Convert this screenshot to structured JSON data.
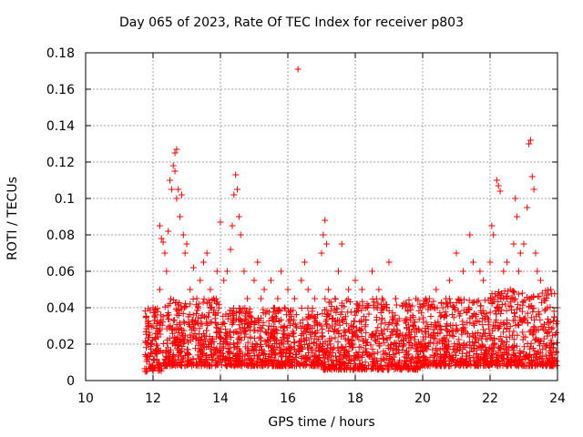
{
  "chart_data": {
    "type": "scatter",
    "title": "Day 065 of 2023, Rate Of TEC Index for receiver p803",
    "xlabel": "GPS time / hours",
    "ylabel": "ROTI / TECUs",
    "xlim": [
      10,
      24
    ],
    "ylim": [
      0,
      0.18
    ],
    "xticks": [
      10,
      12,
      14,
      16,
      18,
      20,
      22,
      24
    ],
    "yticks": [
      0,
      0.02,
      0.04,
      0.06,
      0.08,
      0.1,
      0.12,
      0.14,
      0.16,
      0.18
    ],
    "grid": true,
    "marker": "+",
    "color": "#ff0000",
    "series": [
      {
        "name": "ROTI",
        "points": [
          [
            11.8,
            0.005
          ],
          [
            11.8,
            0.035
          ],
          [
            11.9,
            0.025
          ],
          [
            12.0,
            0.03
          ],
          [
            12.0,
            0.04
          ],
          [
            12.1,
            0.02
          ],
          [
            12.2,
            0.05
          ],
          [
            12.2,
            0.085
          ],
          [
            12.25,
            0.078
          ],
          [
            12.3,
            0.076
          ],
          [
            12.35,
            0.07
          ],
          [
            12.4,
            0.06
          ],
          [
            12.45,
            0.082
          ],
          [
            12.5,
            0.11
          ],
          [
            12.55,
            0.105
          ],
          [
            12.6,
            0.118
          ],
          [
            12.65,
            0.125
          ],
          [
            12.7,
            0.127
          ],
          [
            12.65,
            0.115
          ],
          [
            12.7,
            0.1
          ],
          [
            12.75,
            0.105
          ],
          [
            12.8,
            0.09
          ],
          [
            12.85,
            0.102
          ],
          [
            12.9,
            0.08
          ],
          [
            12.95,
            0.07
          ],
          [
            13.0,
            0.075
          ],
          [
            13.1,
            0.05
          ],
          [
            13.2,
            0.062
          ],
          [
            13.3,
            0.045
          ],
          [
            13.4,
            0.055
          ],
          [
            13.5,
            0.065
          ],
          [
            13.6,
            0.07
          ],
          [
            13.7,
            0.05
          ],
          [
            13.8,
            0.045
          ],
          [
            13.9,
            0.06
          ],
          [
            14.0,
            0.087
          ],
          [
            14.1,
            0.055
          ],
          [
            14.2,
            0.06
          ],
          [
            14.3,
            0.072
          ],
          [
            14.35,
            0.085
          ],
          [
            14.4,
            0.102
          ],
          [
            14.45,
            0.113
          ],
          [
            14.5,
            0.105
          ],
          [
            14.55,
            0.09
          ],
          [
            14.6,
            0.08
          ],
          [
            14.7,
            0.06
          ],
          [
            14.8,
            0.045
          ],
          [
            15.0,
            0.055
          ],
          [
            15.1,
            0.065
          ],
          [
            15.2,
            0.045
          ],
          [
            15.3,
            0.05
          ],
          [
            15.5,
            0.055
          ],
          [
            15.7,
            0.045
          ],
          [
            15.8,
            0.06
          ],
          [
            15.9,
            0.04
          ],
          [
            16.0,
            0.05
          ],
          [
            16.2,
            0.045
          ],
          [
            16.3,
            0.171
          ],
          [
            16.4,
            0.055
          ],
          [
            16.5,
            0.065
          ],
          [
            16.6,
            0.05
          ],
          [
            16.8,
            0.045
          ],
          [
            17.0,
            0.07
          ],
          [
            17.05,
            0.08
          ],
          [
            17.1,
            0.088
          ],
          [
            17.15,
            0.075
          ],
          [
            17.2,
            0.05
          ],
          [
            17.4,
            0.045
          ],
          [
            17.5,
            0.06
          ],
          [
            17.6,
            0.075
          ],
          [
            17.8,
            0.05
          ],
          [
            18.0,
            0.055
          ],
          [
            18.2,
            0.05
          ],
          [
            18.5,
            0.06
          ],
          [
            18.7,
            0.05
          ],
          [
            18.8,
            0.045
          ],
          [
            19.0,
            0.065
          ],
          [
            19.2,
            0.045
          ],
          [
            19.5,
            0.04
          ],
          [
            19.8,
            0.045
          ],
          [
            20.0,
            0.04
          ],
          [
            20.2,
            0.045
          ],
          [
            20.4,
            0.05
          ],
          [
            20.6,
            0.04
          ],
          [
            20.8,
            0.055
          ],
          [
            21.0,
            0.07
          ],
          [
            21.2,
            0.06
          ],
          [
            21.4,
            0.08
          ],
          [
            21.5,
            0.065
          ],
          [
            21.7,
            0.06
          ],
          [
            21.8,
            0.055
          ],
          [
            22.0,
            0.065
          ],
          [
            22.05,
            0.085
          ],
          [
            22.1,
            0.08
          ],
          [
            22.2,
            0.11
          ],
          [
            22.25,
            0.107
          ],
          [
            22.3,
            0.104
          ],
          [
            22.4,
            0.06
          ],
          [
            22.5,
            0.065
          ],
          [
            22.6,
            0.05
          ],
          [
            22.7,
            0.075
          ],
          [
            22.75,
            0.1
          ],
          [
            22.8,
            0.09
          ],
          [
            22.85,
            0.06
          ],
          [
            22.9,
            0.07
          ],
          [
            23.0,
            0.075
          ],
          [
            23.1,
            0.095
          ],
          [
            23.15,
            0.13
          ],
          [
            23.2,
            0.132
          ],
          [
            23.25,
            0.112
          ],
          [
            23.3,
            0.105
          ],
          [
            23.35,
            0.07
          ],
          [
            23.4,
            0.06
          ],
          [
            23.5,
            0.055
          ],
          [
            23.6,
            0.045
          ],
          [
            23.7,
            0.04
          ],
          [
            23.8,
            0.05
          ],
          [
            23.9,
            0.035
          ],
          [
            24.0,
            0.04
          ]
        ]
      }
    ],
    "dense_band": [
      {
        "x_range": [
          11.75,
          12.3
        ],
        "low": 0.005,
        "high": 0.04
      },
      {
        "x_range": [
          12.3,
          14.0
        ],
        "low": 0.008,
        "high": 0.045
      },
      {
        "x_range": [
          14.0,
          17.0
        ],
        "low": 0.008,
        "high": 0.04
      },
      {
        "x_range": [
          17.0,
          20.0
        ],
        "low": 0.006,
        "high": 0.045
      },
      {
        "x_range": [
          20.0,
          22.0
        ],
        "low": 0.008,
        "high": 0.045
      },
      {
        "x_range": [
          22.0,
          24.0
        ],
        "low": 0.008,
        "high": 0.05
      }
    ]
  }
}
